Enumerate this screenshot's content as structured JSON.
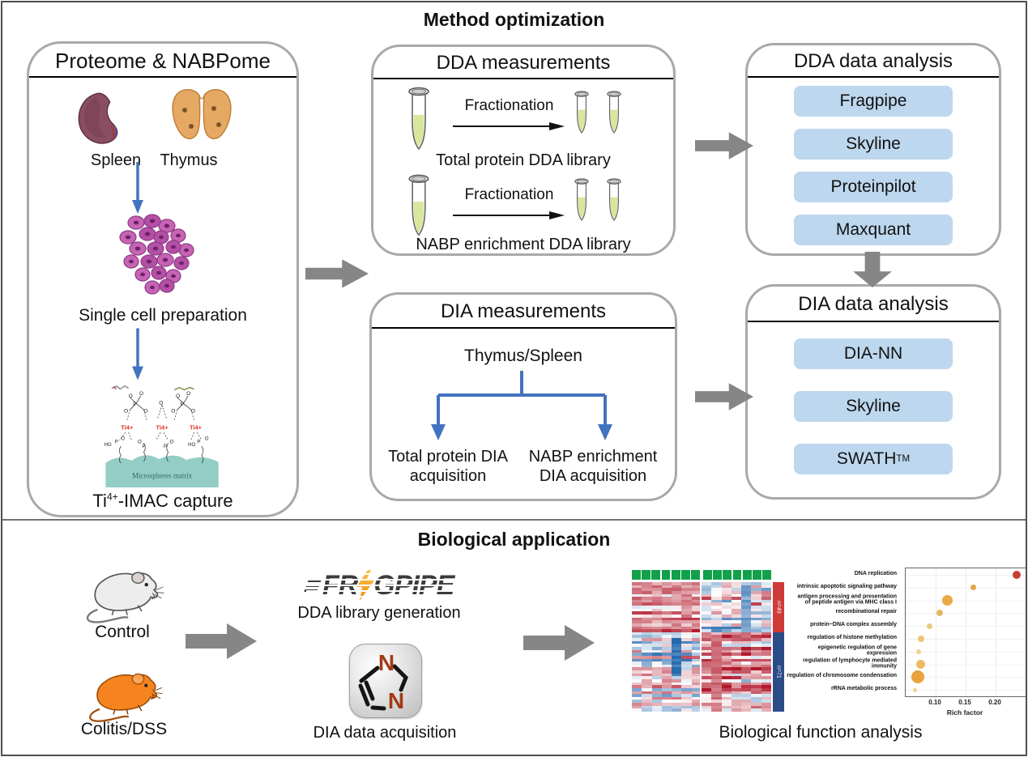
{
  "titles": {
    "top": "Method optimization",
    "bottom": "Biological application"
  },
  "left_panel": {
    "header": "Proteome & NABPome",
    "organ_left": "Spleen",
    "organ_right": "Thymus",
    "step_cells": "Single cell preparation",
    "matrix_label": "Microspheres matrix",
    "ti_label": "Ti4+",
    "capture_prefix": "Ti",
    "capture_sup": "4+",
    "capture_suffix": "-IMAC capture"
  },
  "dda_measurements": {
    "header": "DDA measurements",
    "row1_arrow": "Fractionation",
    "row1_caption": "Total protein DDA library",
    "row2_arrow": "Fractionation",
    "row2_caption": "NABP enrichment DDA library"
  },
  "dia_measurements": {
    "header": "DIA measurements",
    "source": "Thymus/Spleen",
    "branch_left": "Total protein DIA\nacquisition",
    "branch_right": "NABP enrichment\nDIA acquisition"
  },
  "dda_analysis": {
    "header": "DDA data analysis",
    "tools": [
      "Fragpipe",
      "Skyline",
      "Proteinpilot",
      "Maxquant"
    ]
  },
  "dia_analysis": {
    "header": "DIA data analysis",
    "tools": [
      "DIA-NN",
      "Skyline"
    ],
    "tool3_base": "SWATH",
    "tool3_sup": "TM"
  },
  "bio": {
    "mouse_top_label": "Control",
    "mouse_bottom_label": "Colitis/DSS",
    "fragpipe_part1": "FR",
    "fragpipe_part2": "GPIPE",
    "fragpipe_caption": "DDA library generation",
    "diann_letter_top": "N",
    "diann_letter_bottom": "N",
    "diann_caption": "DIA data acquisition",
    "result_caption": "Biological function analysis"
  },
  "heatmap": {
    "annotation_color": "#12a14b",
    "columns": 14,
    "rows": 44,
    "group_split": 7,
    "seed": 42,
    "side_top": {
      "label": "n=49",
      "color": "#cf3b38",
      "row_end": 17
    },
    "side_bottom": {
      "label": "n=71",
      "color": "#2c4c87"
    },
    "blocks": [
      {
        "r0": 0,
        "r1": 17,
        "c0": 0,
        "c1": 7,
        "bias": 0.3,
        "spread": 0.4
      },
      {
        "r0": 0,
        "r1": 17,
        "c0": 7,
        "c1": 14,
        "bias": -0.05,
        "spread": 0.8
      },
      {
        "r0": 17,
        "r1": 44,
        "c0": 0,
        "c1": 7,
        "bias": -0.1,
        "spread": 0.65
      },
      {
        "r0": 17,
        "r1": 44,
        "c0": 7,
        "c1": 14,
        "bias": 0.35,
        "spread": 0.65
      }
    ],
    "accents": [
      {
        "r0": 19,
        "r1": 32,
        "c0": 4,
        "c1": 5,
        "bias": -0.85
      },
      {
        "r0": 1,
        "r1": 17,
        "c0": 11,
        "c1": 12,
        "bias": -0.55
      },
      {
        "r0": 2,
        "r1": 12,
        "c0": 5,
        "c1": 6,
        "bias": 0.45
      },
      {
        "r0": 20,
        "r1": 40,
        "c0": 8,
        "c1": 9,
        "bias": 0.55
      }
    ]
  },
  "chart_data": [
    {
      "type": "heatmap",
      "description": "Clustered protein-abundance heatmap, blue-white-red scale, 14 sample columns in two green-annotated groups of 7; rows split into an upper cluster (red sidebar, n=49) and a lower cluster (blue sidebar, n=71); individual cell values not legible",
      "column_groups": [
        7,
        7
      ],
      "row_clusters": [
        {
          "label": "n=49",
          "color": "#cf3b38"
        },
        {
          "label": "n=71",
          "color": "#2c4c87"
        }
      ],
      "legend_position": "none"
    },
    {
      "type": "scatter",
      "title": "",
      "xlabel": "Rich factor",
      "xlim": [
        0.05,
        0.25
      ],
      "xticks": [
        "0.10",
        "0.15",
        "0.20"
      ],
      "grid": true,
      "categories": [
        "DNA replication",
        "intrinsic apoptotic signaling pathway",
        "antigen processing and presentation\nof peptide antigen via MHC class I",
        "recombinational repair",
        "protein−DNA complex assembly",
        "regulation of histone methylation",
        "epigenetic regulation of gene expression",
        "regulation of lymphocyte mediated immunity",
        "regulation of chromosome condensation",
        "rRNA metabolic process"
      ],
      "values": [
        0.235,
        0.163,
        0.12,
        0.107,
        0.09,
        0.076,
        0.072,
        0.075,
        0.07,
        0.065
      ],
      "dot_radius": [
        5,
        3.5,
        6.5,
        4,
        3.5,
        4,
        3,
        5.5,
        8,
        2.5
      ],
      "dot_color": [
        "#c8402f",
        "#e3a64b",
        "#e9a945",
        "#e5b766",
        "#ecc87f",
        "#eec174",
        "#f0d090",
        "#edbb60",
        "#e8a33c",
        "#f0d494"
      ]
    }
  ]
}
